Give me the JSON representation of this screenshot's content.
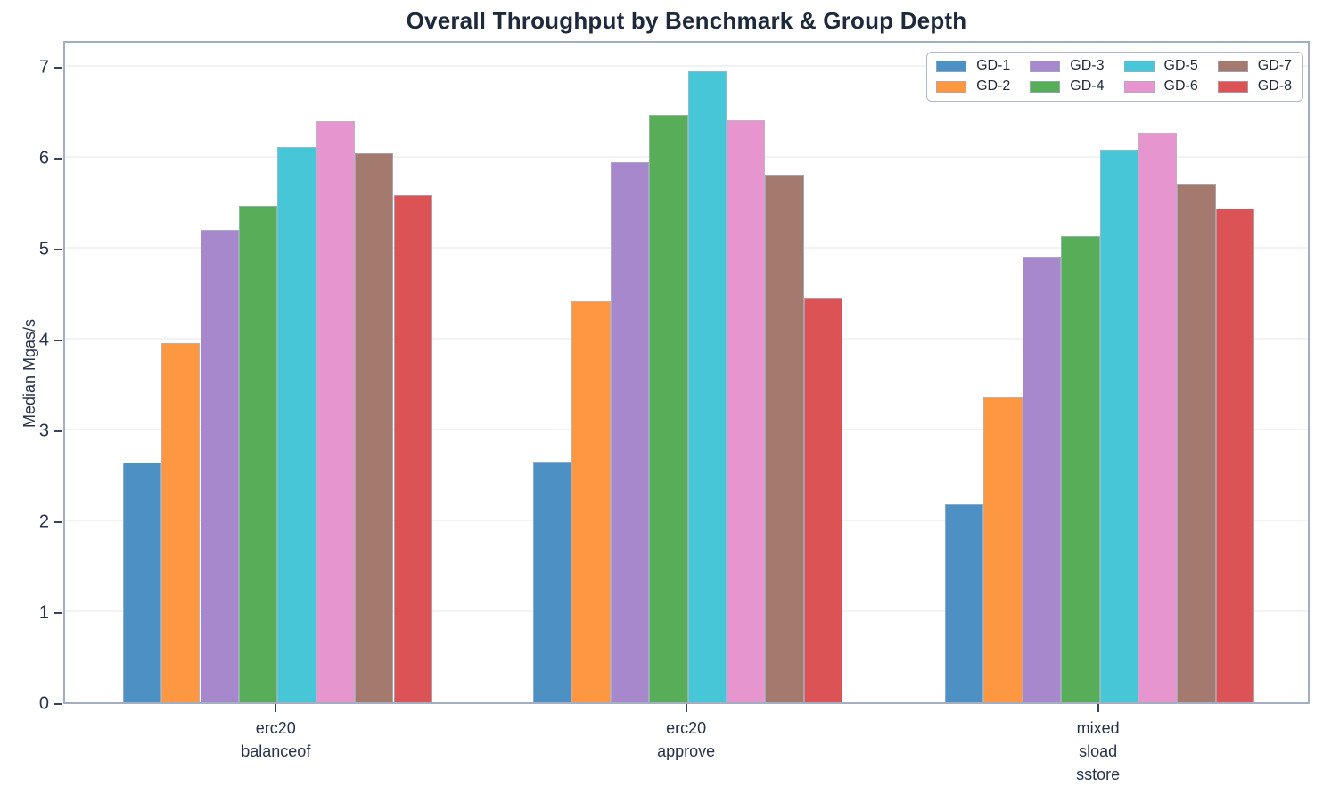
{
  "title": "Overall Throughput by Benchmark & Group Depth",
  "chart_data": {
    "type": "bar",
    "title": "Overall Throughput by Benchmark & Group Depth",
    "xlabel": "",
    "ylabel": "Median Mgas/s",
    "ylim": [
      0,
      7.29
    ],
    "yticks": [
      0,
      1,
      2,
      3,
      4,
      5,
      6,
      7
    ],
    "grid": true,
    "legend_position": "upper right",
    "legend_columns": 4,
    "categories": [
      {
        "lines": [
          "erc20",
          "balanceof"
        ]
      },
      {
        "lines": [
          "erc20",
          "approve"
        ]
      },
      {
        "lines": [
          "mixed",
          "sload",
          "sstore"
        ]
      }
    ],
    "series": [
      {
        "name": "GD-1",
        "color": "#4D90C4",
        "values": [
          2.64,
          2.65,
          2.18
        ]
      },
      {
        "name": "GD-2",
        "color": "#FD9741",
        "values": [
          3.95,
          4.41,
          3.35
        ]
      },
      {
        "name": "GD-3",
        "color": "#A888CC",
        "values": [
          5.19,
          5.94,
          4.9
        ]
      },
      {
        "name": "GD-4",
        "color": "#58AE58",
        "values": [
          5.46,
          6.46,
          5.12
        ]
      },
      {
        "name": "GD-5",
        "color": "#46C6D6",
        "values": [
          6.1,
          6.94,
          6.08
        ]
      },
      {
        "name": "GD-6",
        "color": "#E795CE",
        "values": [
          6.39,
          6.4,
          6.26
        ]
      },
      {
        "name": "GD-7",
        "color": "#A4796E",
        "values": [
          6.04,
          5.8,
          5.69
        ]
      },
      {
        "name": "GD-8",
        "color": "#DB5354",
        "values": [
          5.58,
          4.45,
          5.43
        ]
      }
    ]
  },
  "colors": {
    "title_text": "#1e2a3c",
    "axis_text": "#26324a",
    "spine": "#a3aec2",
    "gridline": "#f1f2f6",
    "legend_border": "#aeb8ca"
  }
}
